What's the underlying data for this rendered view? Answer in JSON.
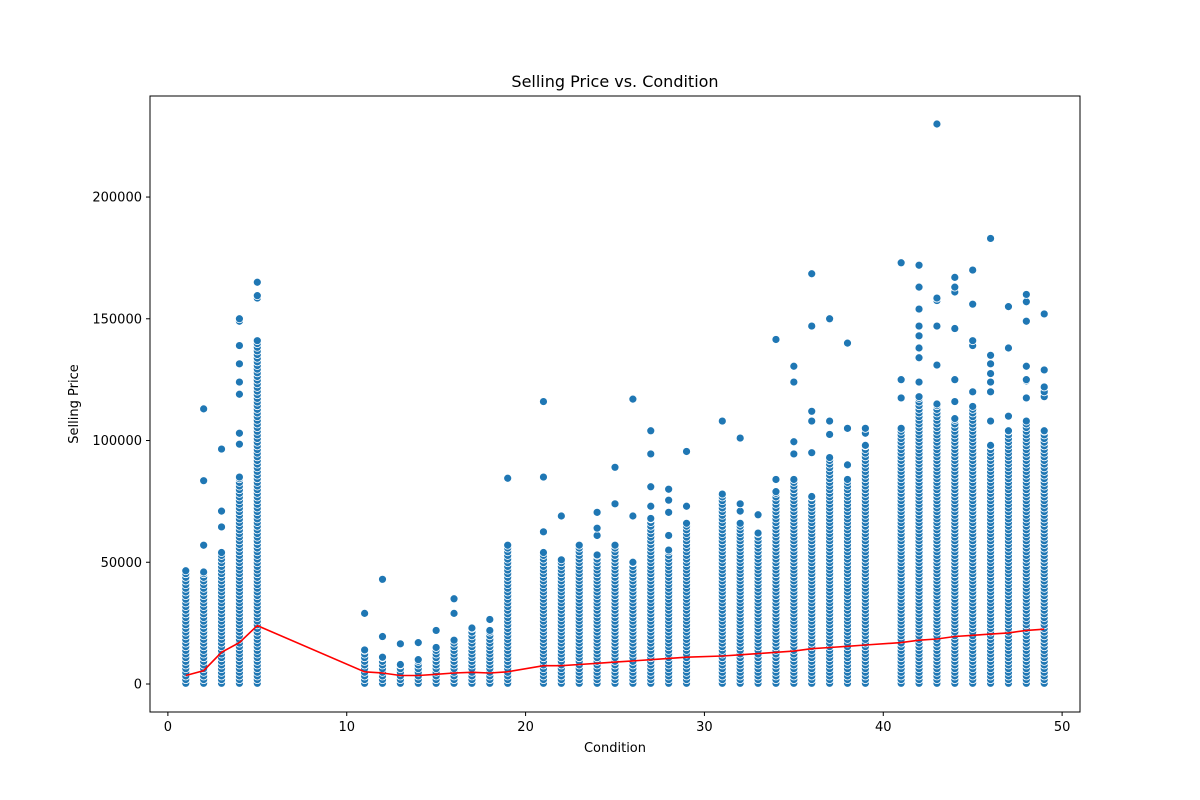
{
  "chart_data": {
    "type": "scatter",
    "title": "Selling Price vs. Condition",
    "xlabel": "Condition",
    "ylabel": "Selling Price",
    "xlim": [
      -1,
      51
    ],
    "ylim": [
      -11500,
      241500
    ],
    "xticks": [
      0,
      10,
      20,
      30,
      40,
      50
    ],
    "yticks": [
      0,
      50000,
      100000,
      150000,
      200000
    ],
    "grid": false,
    "colors": {
      "points": "#1f77b4",
      "point_edge": "#ffffff",
      "trend": "#ff0000"
    },
    "series": [
      {
        "type": "scatter",
        "columns": [
          {
            "x": 1,
            "max": 46500,
            "extra": []
          },
          {
            "x": 2,
            "max": 46000,
            "extra": [
              57000,
              83500,
              113000
            ]
          },
          {
            "x": 3,
            "max": 54000,
            "extra": [
              64500,
              71000,
              96500
            ]
          },
          {
            "x": 4,
            "max": 85000,
            "extra": [
              98500,
              103000,
              119000,
              124000,
              131500,
              139000,
              149000,
              150000
            ]
          },
          {
            "x": 5,
            "max": 141000,
            "extra": [
              158500,
              159500,
              165000
            ]
          },
          {
            "x": 11,
            "max": 14000,
            "extra": [
              29000
            ]
          },
          {
            "x": 12,
            "max": 11000,
            "extra": [
              19500,
              43000
            ]
          },
          {
            "x": 13,
            "max": 8000,
            "extra": [
              16500
            ]
          },
          {
            "x": 14,
            "max": 10000,
            "extra": [
              17000
            ]
          },
          {
            "x": 15,
            "max": 15000,
            "extra": [
              22000
            ]
          },
          {
            "x": 16,
            "max": 18000,
            "extra": [
              29000,
              35000
            ]
          },
          {
            "x": 17,
            "max": 23000,
            "extra": []
          },
          {
            "x": 18,
            "max": 22000,
            "extra": [
              26500
            ]
          },
          {
            "x": 19,
            "max": 57000,
            "extra": [
              84500
            ]
          },
          {
            "x": 21,
            "max": 54000,
            "extra": [
              62500,
              85000,
              116000
            ]
          },
          {
            "x": 22,
            "max": 51000,
            "extra": [
              69000
            ]
          },
          {
            "x": 23,
            "max": 57000,
            "extra": []
          },
          {
            "x": 24,
            "max": 53000,
            "extra": [
              61000,
              64000,
              70500
            ]
          },
          {
            "x": 25,
            "max": 57000,
            "extra": [
              74000,
              89000
            ]
          },
          {
            "x": 26,
            "max": 50000,
            "extra": [
              69000,
              117000
            ]
          },
          {
            "x": 27,
            "max": 68000,
            "extra": [
              73000,
              81000,
              94500,
              104000
            ]
          },
          {
            "x": 28,
            "max": 55000,
            "extra": [
              61000,
              70500,
              75500,
              80000
            ]
          },
          {
            "x": 29,
            "max": 66000,
            "extra": [
              73000,
              95500
            ]
          },
          {
            "x": 31,
            "max": 78000,
            "extra": [
              108000
            ]
          },
          {
            "x": 32,
            "max": 66000,
            "extra": [
              71000,
              74000,
              101000
            ]
          },
          {
            "x": 33,
            "max": 62000,
            "extra": [
              69500
            ]
          },
          {
            "x": 34,
            "max": 79000,
            "extra": [
              84000,
              141500
            ]
          },
          {
            "x": 35,
            "max": 84000,
            "extra": [
              94500,
              99500,
              124000,
              130500
            ]
          },
          {
            "x": 36,
            "max": 77000,
            "extra": [
              95000,
              108000,
              112000,
              147000,
              168500
            ]
          },
          {
            "x": 37,
            "max": 93000,
            "extra": [
              102500,
              108000,
              150000
            ]
          },
          {
            "x": 38,
            "max": 84000,
            "extra": [
              90000,
              105000,
              140000
            ]
          },
          {
            "x": 39,
            "max": 98000,
            "extra": [
              103000,
              105000
            ]
          },
          {
            "x": 41,
            "max": 105000,
            "extra": [
              117500,
              125000,
              173000
            ]
          },
          {
            "x": 42,
            "max": 118000,
            "extra": [
              124000,
              134000,
              138000,
              143000,
              147000,
              154000,
              163000,
              172000
            ]
          },
          {
            "x": 43,
            "max": 115000,
            "extra": [
              131000,
              147000,
              157500,
              158500,
              230000
            ]
          },
          {
            "x": 44,
            "max": 109000,
            "extra": [
              116000,
              125000,
              146000,
              161000,
              163000,
              167000
            ]
          },
          {
            "x": 45,
            "max": 114000,
            "extra": [
              120000,
              139000,
              141000,
              156000,
              170000
            ]
          },
          {
            "x": 46,
            "max": 98000,
            "extra": [
              108000,
              120000,
              124000,
              127500,
              131500,
              135000,
              183000
            ]
          },
          {
            "x": 47,
            "max": 104000,
            "extra": [
              110000,
              138000,
              155000
            ]
          },
          {
            "x": 48,
            "max": 108000,
            "extra": [
              117500,
              124500,
              125000,
              130500,
              149000,
              157000,
              160000
            ]
          },
          {
            "x": 49,
            "max": 104000,
            "extra": [
              118000,
              120000,
              122000,
              129000,
              152000
            ]
          }
        ]
      },
      {
        "type": "line",
        "x": [
          1,
          2,
          3,
          4,
          5,
          11,
          12,
          13,
          14,
          15,
          16,
          17,
          18,
          19,
          21,
          22,
          23,
          24,
          25,
          26,
          27,
          28,
          29,
          31,
          32,
          33,
          34,
          35,
          36,
          37,
          38,
          39,
          41,
          42,
          43,
          44,
          45,
          46,
          47,
          48,
          49
        ],
        "y": [
          3500,
          5500,
          13000,
          17000,
          24000,
          5000,
          4500,
          3500,
          3500,
          4000,
          4500,
          4800,
          4500,
          5000,
          7500,
          7500,
          8000,
          8500,
          9000,
          9500,
          10000,
          10500,
          11000,
          11500,
          12000,
          12500,
          13000,
          13500,
          14500,
          15000,
          15500,
          16000,
          17000,
          18000,
          18500,
          19500,
          20000,
          20500,
          21000,
          22000,
          22500
        ]
      }
    ]
  }
}
